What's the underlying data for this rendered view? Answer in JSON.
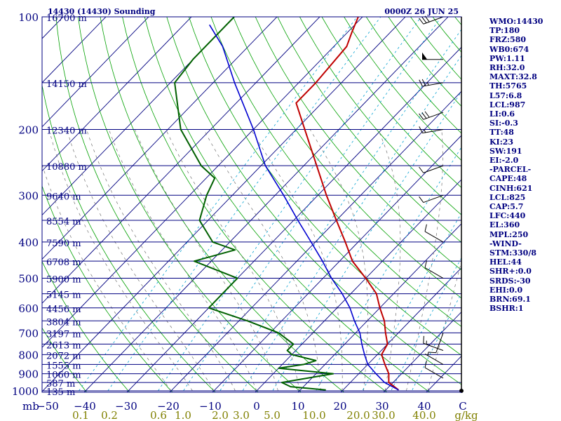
{
  "header": {
    "station": "14430 (14430) Sounding",
    "time": "0000Z 26 JUN 25"
  },
  "indices": [
    "WMO:14430",
    "TP:180",
    "FRZ:580",
    "WB0:674",
    "PW:1.11",
    "RH:32.0",
    "MAXT:32.8",
    "TH:5765",
    "L57:6.8",
    "LCL:987",
    "LI:0.6",
    "SI:-0.3",
    "TT:48",
    "KI:23",
    "SW:191",
    "EI:-2.0",
    "-PARCEL-",
    "CAPE:48",
    "CINH:621",
    "LCL:825",
    "CAP:5.7",
    "LFC:440",
    "EL:360",
    "MPL:250",
    "-WIND-",
    "STM:330/8",
    "HEL:44",
    "SHR+:0.0",
    "SRDS:-30",
    "EHI:0.0",
    "BRN:69.1",
    "BSHR:1"
  ],
  "colors": {
    "frame": "#000080",
    "isobar": "#000080",
    "isotherm": "#000080",
    "dry_adiabat": "#00a000",
    "moist_adiabat": "#707070",
    "mixing_ratio": "#00a0d0",
    "temperature": "#c00000",
    "dewpoint": "#006000",
    "parcel": "#0000d0",
    "ratio_label": "#808000",
    "wind": "#000000"
  },
  "chart_data": {
    "type": "skew-t",
    "pressure_unit": "mb",
    "pressure_axis": "log",
    "pressure_range": [
      1000,
      100
    ],
    "temperature_ticks": [
      -50,
      -40,
      -30,
      -20,
      -10,
      0,
      10,
      20,
      30,
      40
    ],
    "temperature_tick_labels": [
      "−50",
      "−40",
      "−30",
      "−20",
      "−10",
      "0",
      "10",
      "20",
      "30",
      "40",
      "C"
    ],
    "temperature_unit": "C",
    "mixing_ratio_unit": "g/kg",
    "mixing_ratio_labels": [
      "0.1",
      "0.2",
      "0.6",
      "1.0",
      "2.0",
      "3.0",
      "5.0",
      "10.0",
      "20.0",
      "30.0",
      "40.0"
    ],
    "isobars": [
      {
        "p": 100,
        "label": "100",
        "height": "16700 m"
      },
      {
        "p": 150,
        "label": "",
        "height": "14150 m"
      },
      {
        "p": 200,
        "label": "200",
        "height": "12340 m"
      },
      {
        "p": 250,
        "label": "",
        "height": "10880 m"
      },
      {
        "p": 300,
        "label": "300",
        "height": "9640 m"
      },
      {
        "p": 350,
        "label": "",
        "height": "8554 m"
      },
      {
        "p": 400,
        "label": "400",
        "height": "7590 m"
      },
      {
        "p": 450,
        "label": "",
        "height": "6708 m"
      },
      {
        "p": 500,
        "label": "500",
        "height": "5900 m"
      },
      {
        "p": 550,
        "label": "",
        "height": "5145 m"
      },
      {
        "p": 600,
        "label": "600",
        "height": "4456 m"
      },
      {
        "p": 650,
        "label": "",
        "height": "3804 m"
      },
      {
        "p": 700,
        "label": "700",
        "height": "3197 m"
      },
      {
        "p": 750,
        "label": "",
        "height": "2613 m"
      },
      {
        "p": 800,
        "label": "800",
        "height": "2072 m"
      },
      {
        "p": 850,
        "label": "",
        "height": "1555 m"
      },
      {
        "p": 900,
        "label": "900",
        "height": "1060 m"
      },
      {
        "p": 950,
        "label": "",
        "height": "587 m"
      },
      {
        "p": 1000,
        "label": "1000",
        "height": "135 m"
      }
    ],
    "temperature_profile": [
      [
        995,
        33
      ],
      [
        950,
        29
      ],
      [
        900,
        27
      ],
      [
        850,
        24
      ],
      [
        800,
        21
      ],
      [
        750,
        20
      ],
      [
        700,
        17
      ],
      [
        650,
        14
      ],
      [
        600,
        10
      ],
      [
        550,
        6
      ],
      [
        500,
        0
      ],
      [
        450,
        -7
      ],
      [
        400,
        -13
      ],
      [
        350,
        -20
      ],
      [
        300,
        -28
      ],
      [
        250,
        -37
      ],
      [
        200,
        -48
      ],
      [
        170,
        -56
      ],
      [
        150,
        -56
      ],
      [
        120,
        -57
      ],
      [
        110,
        -59
      ],
      [
        100,
        -61
      ]
    ],
    "dewpoint_profile": [
      [
        995,
        16
      ],
      [
        975,
        7
      ],
      [
        950,
        4
      ],
      [
        900,
        14
      ],
      [
        870,
        0
      ],
      [
        850,
        5
      ],
      [
        830,
        7
      ],
      [
        800,
        0
      ],
      [
        780,
        -2
      ],
      [
        750,
        -2
      ],
      [
        700,
        -8
      ],
      [
        650,
        -18
      ],
      [
        600,
        -30
      ],
      [
        550,
        -30
      ],
      [
        500,
        -30
      ],
      [
        450,
        -44
      ],
      [
        420,
        -37
      ],
      [
        400,
        -44
      ],
      [
        350,
        -52
      ],
      [
        300,
        -56
      ],
      [
        270,
        -58
      ],
      [
        250,
        -64
      ],
      [
        200,
        -77
      ],
      [
        150,
        -89
      ],
      [
        130,
        -90
      ],
      [
        100,
        -90
      ]
    ],
    "parcel_path": [
      [
        995,
        33
      ],
      [
        950,
        28
      ],
      [
        900,
        24
      ],
      [
        850,
        20
      ],
      [
        800,
        17
      ],
      [
        750,
        14
      ],
      [
        700,
        11
      ],
      [
        650,
        7
      ],
      [
        600,
        3
      ],
      [
        550,
        -2
      ],
      [
        500,
        -8
      ],
      [
        450,
        -14
      ],
      [
        400,
        -21
      ],
      [
        350,
        -29
      ],
      [
        300,
        -38
      ],
      [
        250,
        -49
      ],
      [
        200,
        -60
      ],
      [
        150,
        -75
      ],
      [
        120,
        -86
      ],
      [
        105,
        -94
      ]
    ],
    "wind_barbs": [
      {
        "p": 1000,
        "dir": 90,
        "kt": 0
      },
      {
        "p": 925,
        "dir": 300,
        "kt": 10
      },
      {
        "p": 850,
        "dir": 300,
        "kt": 5
      },
      {
        "p": 780,
        "dir": 290,
        "kt": 15
      },
      {
        "p": 700,
        "dir": 200,
        "kt": 10
      },
      {
        "p": 500,
        "dir": 300,
        "kt": 10
      },
      {
        "p": 400,
        "dir": 300,
        "kt": 10
      },
      {
        "p": 300,
        "dir": 250,
        "kt": 10
      },
      {
        "p": 250,
        "dir": 250,
        "kt": 10
      },
      {
        "p": 200,
        "dir": 260,
        "kt": 15
      },
      {
        "p": 180,
        "dir": 250,
        "kt": 30
      },
      {
        "p": 150,
        "dir": 260,
        "kt": 25
      },
      {
        "p": 130,
        "dir": 270,
        "kt": 50
      },
      {
        "p": 100,
        "dir": 250,
        "kt": 30
      }
    ]
  }
}
